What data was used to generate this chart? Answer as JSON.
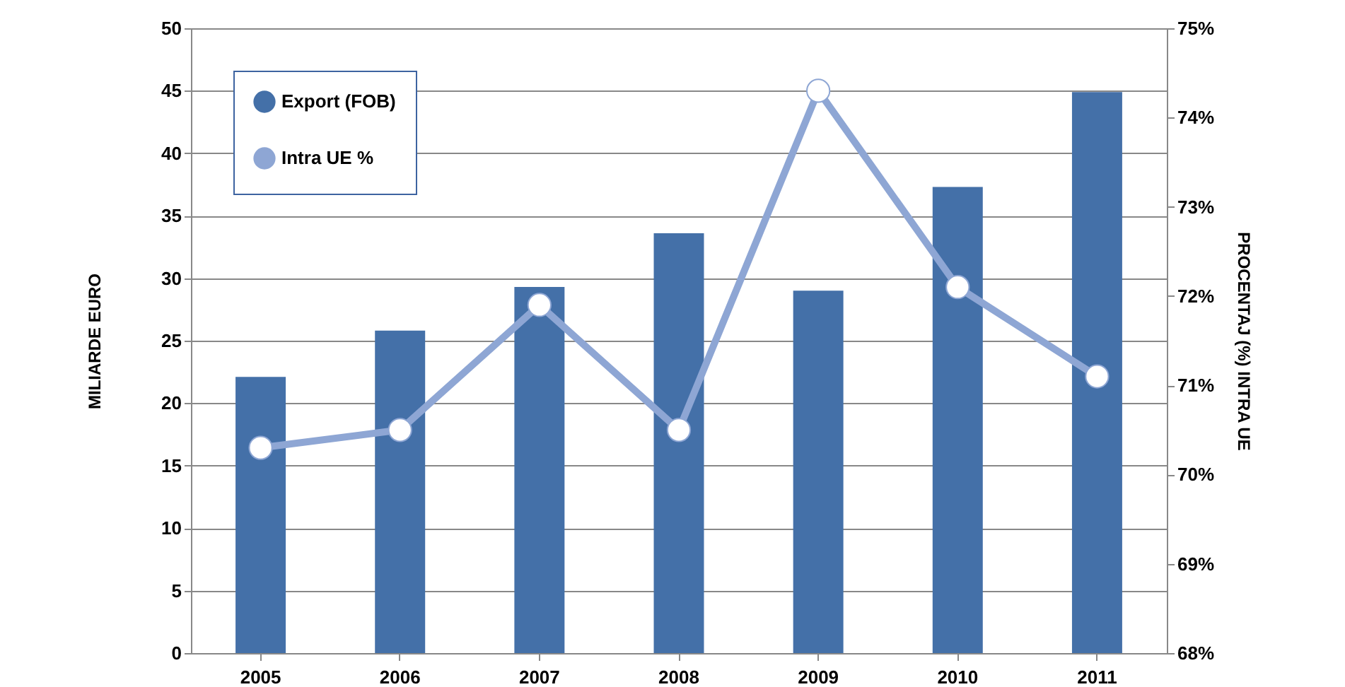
{
  "chart_data": {
    "type": "bar",
    "categories": [
      "2005",
      "2006",
      "2007",
      "2008",
      "2009",
      "2010",
      "2011"
    ],
    "series": [
      {
        "name": "Export (FOB)",
        "color": "#4470a8",
        "values": [
          22.1,
          25.8,
          29.3,
          33.6,
          29.0,
          37.3,
          44.9
        ]
      },
      {
        "name": "Intra UE %",
        "type": "line",
        "axis": "y2",
        "color": "#8ea6d4",
        "values": [
          70.3,
          70.5,
          71.9,
          70.5,
          74.3,
          72.1,
          71.1
        ]
      }
    ],
    "ylabel": "MILIARDE EURO",
    "y2label": "PROCENTAJ (%)  INTRA UE",
    "ylim": [
      0,
      50
    ],
    "yticks": [
      0,
      5,
      10,
      15,
      20,
      25,
      30,
      35,
      40,
      45,
      50
    ],
    "y2lim": [
      68,
      75
    ],
    "y2ticks": [
      {
        "value": 68,
        "label": "68%"
      },
      {
        "value": 69,
        "label": "69%"
      },
      {
        "value": 70,
        "label": "70%"
      },
      {
        "value": 71,
        "label": "71%"
      },
      {
        "value": 72,
        "label": "72%"
      },
      {
        "value": 73,
        "label": "73%"
      },
      {
        "value": 74,
        "label": "74%"
      },
      {
        "value": 75,
        "label": "75%"
      }
    ],
    "grid": "y",
    "legend": "top left",
    "marker": "circle"
  }
}
